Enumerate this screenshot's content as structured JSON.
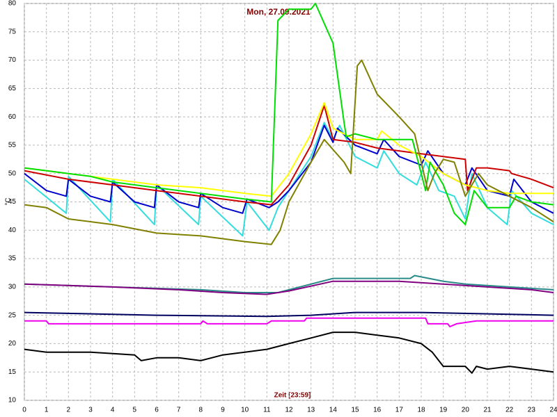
{
  "chart_data": {
    "type": "line",
    "title": "Mon, 27.09.2021",
    "x_label": "Zeit [23:59]",
    "y_label": "°C",
    "xlim": [
      0,
      24
    ],
    "ylim": [
      10,
      80
    ],
    "xticks": [
      0,
      1,
      2,
      3,
      4,
      5,
      6,
      7,
      8,
      9,
      10,
      11,
      12,
      13,
      14,
      15,
      16,
      17,
      18,
      19,
      20,
      21,
      22,
      23,
      24
    ],
    "yticks": [
      10,
      15,
      20,
      25,
      30,
      35,
      40,
      45,
      50,
      55,
      60,
      65,
      70,
      75,
      80
    ],
    "grid": true,
    "series": [
      {
        "color": "#33dddd",
        "x": [
          0,
          1.9,
          2.0,
          3.9,
          4.0,
          5.9,
          6.0,
          7.9,
          8.0,
          9.9,
          10.1,
          11.1,
          11.5,
          12,
          13,
          13.6,
          14,
          14.3,
          15,
          16,
          16.3,
          17,
          17.8,
          18.2,
          18.8,
          19.5,
          20,
          20.3,
          21,
          21.9,
          22.1,
          23,
          24
        ],
        "values": [
          49,
          43,
          49.5,
          41.5,
          49,
          41,
          48,
          41,
          46,
          39,
          45,
          40,
          44,
          47,
          53,
          59,
          56,
          58.5,
          53,
          51,
          54,
          50,
          48,
          52,
          47,
          46,
          42,
          50,
          44,
          41,
          47,
          43,
          41
        ]
      },
      {
        "color": "#0000cc",
        "x": [
          0,
          1,
          1.9,
          2.0,
          3,
          3.9,
          4.0,
          5,
          5.9,
          6.0,
          7,
          7.9,
          8.0,
          9,
          9.9,
          10.1,
          11.1,
          11.5,
          12,
          13,
          13.6,
          14,
          14.2,
          15,
          16,
          16.3,
          17,
          18,
          18.3,
          19,
          20,
          20.3,
          21,
          22,
          22.2,
          23,
          24
        ],
        "values": [
          50,
          47,
          46,
          49,
          46,
          45,
          48.5,
          45,
          44,
          48,
          45,
          44,
          46.5,
          44,
          43,
          45.5,
          44,
          45,
          47,
          52,
          58.5,
          55.5,
          58,
          55,
          53.5,
          56,
          53,
          51.5,
          54,
          50,
          48,
          51,
          47,
          46,
          49,
          45,
          43
        ]
      },
      {
        "color": "#cc0000",
        "x": [
          0,
          2,
          4,
          6,
          8,
          10,
          11.2,
          12,
          13,
          13.6,
          14,
          15,
          16,
          17,
          18,
          19,
          20,
          20.1,
          20.5,
          21,
          22,
          22.1,
          23,
          24
        ],
        "values": [
          50.5,
          49,
          48,
          47,
          46,
          45,
          44.5,
          48,
          55,
          62,
          56,
          55.5,
          54.5,
          54,
          53.5,
          53,
          52.5,
          47,
          51,
          51,
          50.5,
          50,
          49,
          47.5
        ]
      },
      {
        "color": "#ffff00",
        "x": [
          0,
          2,
          4,
          6,
          8,
          10,
          11.2,
          12,
          13,
          13.6,
          14,
          15,
          16,
          16.2,
          17,
          18,
          19,
          20,
          21,
          22,
          24
        ],
        "values": [
          51,
          50,
          49,
          48,
          47.5,
          46.5,
          46,
          50,
          57,
          62.5,
          58,
          56,
          56,
          57.5,
          55,
          53,
          50,
          48,
          47,
          46.5,
          46.5
        ]
      },
      {
        "color": "#00dd00",
        "x": [
          0,
          1,
          2,
          3,
          4,
          6,
          8,
          10,
          11.2,
          11.5,
          12,
          13,
          13.2,
          14,
          14.5,
          14.6,
          15,
          16,
          17,
          17.6,
          18.2,
          18.4,
          19,
          19.5,
          20,
          20.4,
          21,
          22,
          22.3,
          23,
          24
        ],
        "values": [
          51,
          50.5,
          50,
          49.5,
          48.5,
          47.5,
          46.5,
          45.5,
          45,
          77,
          79,
          79,
          80,
          73,
          59,
          56.5,
          57,
          56,
          56,
          56,
          47,
          52,
          48,
          43,
          41,
          47,
          44,
          44,
          46,
          45,
          44.5
        ]
      },
      {
        "color": "#808000",
        "x": [
          0,
          1,
          2,
          4,
          6,
          8,
          10,
          11.2,
          11.6,
          12,
          13,
          13.6,
          14.5,
          14.8,
          15.1,
          15.3,
          16,
          17,
          17.7,
          18.3,
          18.6,
          19,
          19.5,
          20,
          20.6,
          21,
          22,
          23,
          24
        ],
        "values": [
          44.5,
          44,
          42,
          41,
          39.5,
          39,
          38,
          37.5,
          40,
          45,
          52,
          56,
          52,
          50,
          69,
          70,
          64,
          60,
          57,
          47,
          50,
          52.5,
          52,
          46,
          50,
          48,
          46,
          44,
          41.5
        ]
      },
      {
        "color": "#2a8a8a",
        "x": [
          0,
          4,
          8,
          10,
          11.5,
          12.5,
          14,
          17.5,
          17.7,
          19,
          20,
          22,
          24
        ],
        "values": [
          30.5,
          30,
          29.5,
          29,
          29,
          30,
          31.5,
          31.5,
          32,
          31,
          30.5,
          30,
          29.5
        ]
      },
      {
        "color": "#800080",
        "x": [
          0,
          4,
          7,
          9,
          11,
          12,
          14,
          17,
          19,
          21,
          23,
          24
        ],
        "values": [
          30.5,
          30,
          29.5,
          29,
          28.7,
          29.3,
          31,
          31,
          30.5,
          30,
          29.5,
          29
        ]
      },
      {
        "color": "#000060",
        "x": [
          0,
          6,
          11,
          13,
          15,
          18,
          24
        ],
        "values": [
          25.5,
          25,
          24.8,
          25,
          25.5,
          25.5,
          25
        ]
      },
      {
        "color": "#ee00ee",
        "x": [
          0,
          1,
          1.1,
          8,
          8.1,
          8.3,
          11,
          11.2,
          12.7,
          12.8,
          18.2,
          18.3,
          19.2,
          19.3,
          19.6,
          20.5,
          24
        ],
        "values": [
          24,
          24,
          23.5,
          23.5,
          24,
          23.5,
          23.5,
          24,
          24,
          24.5,
          24.5,
          23.5,
          23.5,
          23,
          23.5,
          24,
          24
        ]
      },
      {
        "color": "#000000",
        "x": [
          0,
          1,
          3,
          5,
          5.3,
          6,
          7,
          8,
          8.5,
          9,
          10,
          11,
          12,
          13,
          14,
          15,
          16,
          17,
          18,
          18.5,
          19,
          20,
          20.3,
          20.5,
          21,
          22,
          23,
          24
        ],
        "values": [
          19,
          18.5,
          18.5,
          18,
          17,
          17.5,
          17.5,
          17,
          17.5,
          18,
          18.5,
          19,
          20,
          21,
          22,
          22,
          21.5,
          21,
          20,
          18.5,
          16,
          16,
          14.8,
          16,
          15.5,
          16,
          15.5,
          15
        ]
      }
    ]
  }
}
